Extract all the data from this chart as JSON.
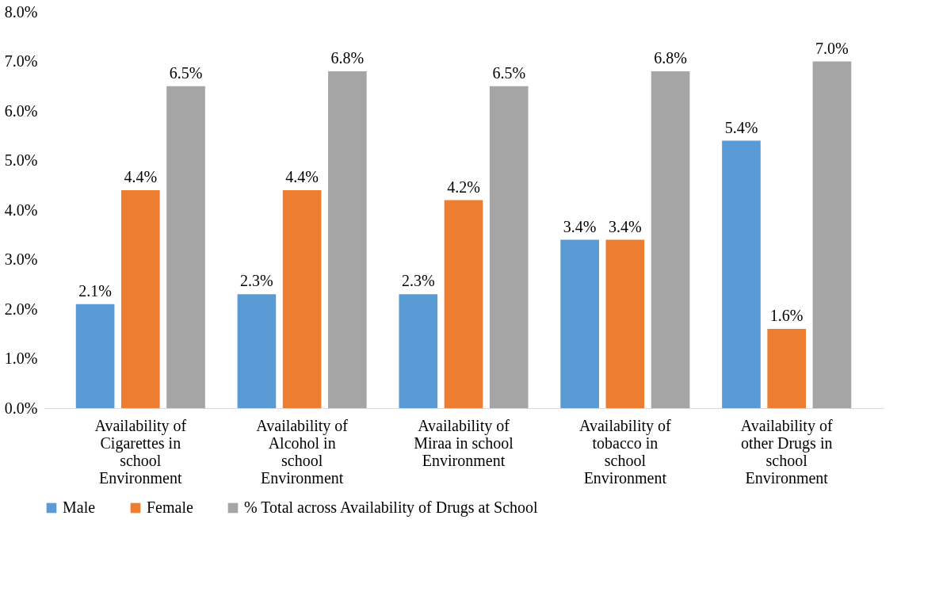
{
  "chart_data": {
    "type": "bar",
    "categories": [
      "Availability of Cigarettes in school Environment",
      "Availability of Alcohol in school Environment",
      "Availability of Miraa in school Environment",
      "Availability of tobacco in school Environment",
      "Availability of other Drugs in school Environment"
    ],
    "series": [
      {
        "name": "Male",
        "color": "#5b9bd5",
        "values": [
          2.1,
          2.3,
          2.3,
          3.4,
          5.4
        ],
        "value_labels": [
          "2.1%",
          "2.3%",
          "2.3%",
          "3.4%",
          "5.4%"
        ]
      },
      {
        "name": "Female",
        "color": "#ed7d31",
        "values": [
          4.4,
          4.4,
          4.2,
          3.4,
          1.6
        ],
        "value_labels": [
          "4.4%",
          "4.4%",
          "4.2%",
          "3.4%",
          "1.6%"
        ]
      },
      {
        "name": "% Total across Availability of Drugs at School",
        "color": "#a5a5a5",
        "values": [
          6.5,
          6.8,
          6.5,
          6.8,
          7.0
        ],
        "value_labels": [
          "6.5%",
          "6.8%",
          "6.5%",
          "6.8%",
          "7.0%"
        ]
      }
    ],
    "ylim": [
      0,
      8
    ],
    "yticks": [
      {
        "value": 0,
        "label": "0.0%"
      },
      {
        "value": 1,
        "label": "1.0%"
      },
      {
        "value": 2,
        "label": "2.0%"
      },
      {
        "value": 3,
        "label": "3.0%"
      },
      {
        "value": 4,
        "label": "4.0%"
      },
      {
        "value": 5,
        "label": "5.0%"
      },
      {
        "value": 6,
        "label": "6.0%"
      },
      {
        "value": 7,
        "label": "7.0%"
      },
      {
        "value": 8,
        "label": "8.0%"
      }
    ],
    "grid": false,
    "legend": "bottom"
  }
}
